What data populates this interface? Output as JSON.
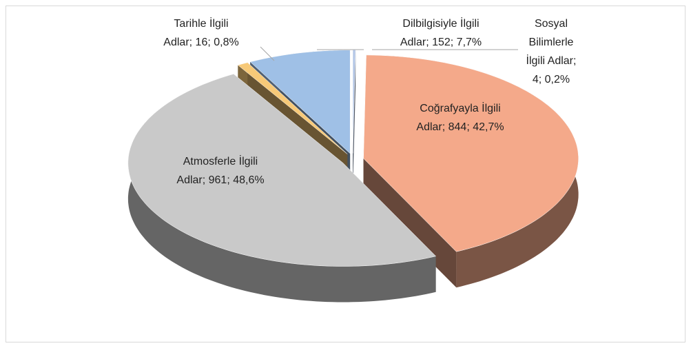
{
  "chart_data": {
    "type": "pie3d",
    "categories": [
      "Sosyal Bilimlerle İlgili Adlar",
      "Coğrafyayla İlgili Adlar",
      "Atmosferle İlgili Adlar",
      "Tarihle İlgili Adlar",
      "Dilbilgisiyle İlgili Adlar"
    ],
    "values": [
      4,
      844,
      961,
      16,
      152
    ],
    "value_labels": [
      "Sosyal Bilimlerle İlgili Adlar; 4; 0,2%",
      "Coğrafyayla İlgili Adlar; 844; 42,7%",
      "Atmosferle İlgili Adlar; 961; 48,6%",
      "Tarihle İlgili Adlar; 16; 0,8%",
      "Dilbilgisiyle İlgili Adlar; 152; 7,7%"
    ],
    "colors": [
      "#b4c7e7",
      "#f4a98a",
      "#c9c9c9",
      "#f7c978",
      "#9fc0e6"
    ]
  }
}
